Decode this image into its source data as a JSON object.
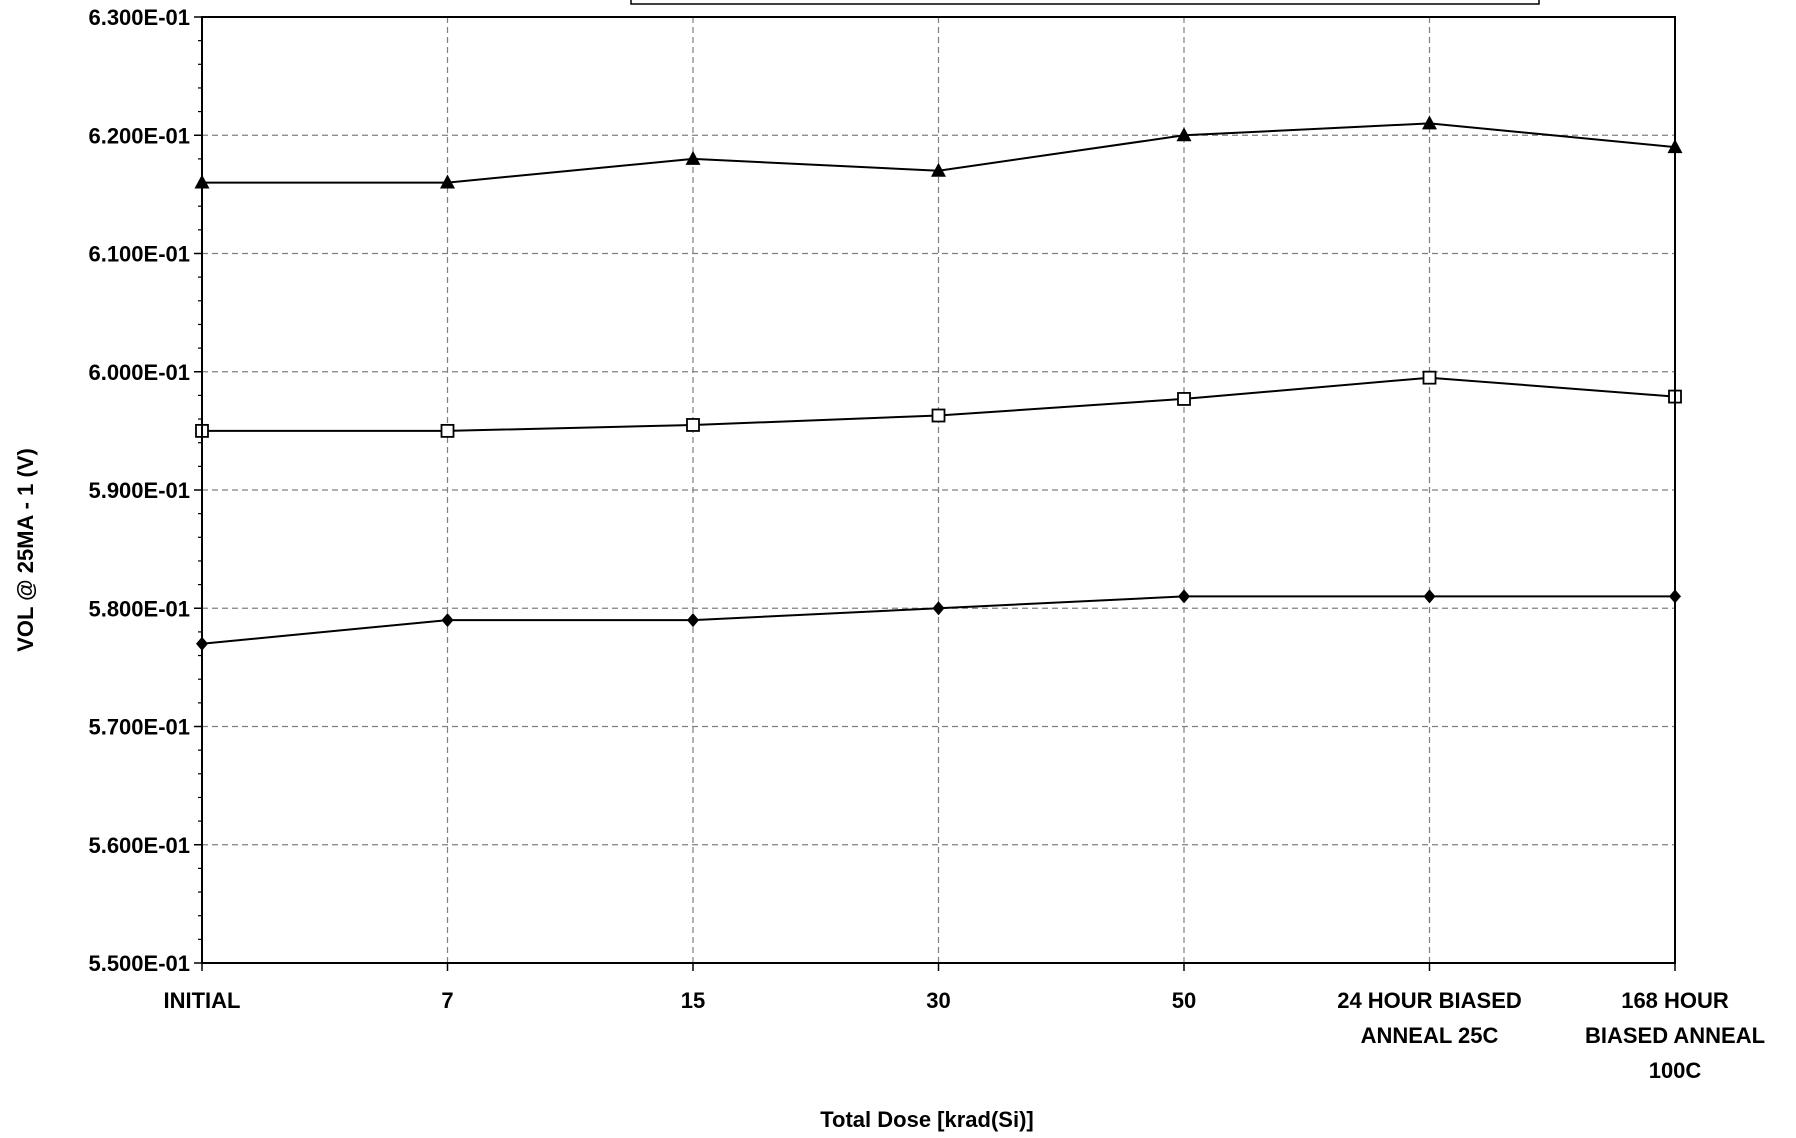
{
  "chart_data": {
    "type": "line",
    "title": "",
    "xlabel": "Total Dose [krad(Si)]",
    "ylabel": "VOL @ 25MA - 1  (V)",
    "categories": [
      [
        "INITIAL"
      ],
      [
        "7"
      ],
      [
        "15"
      ],
      [
        "30"
      ],
      [
        "50"
      ],
      [
        "24 HOUR BIASED",
        "ANNEAL 25C"
      ],
      [
        "168 HOUR",
        "BIASED ANNEAL",
        "100C"
      ]
    ],
    "ylim": [
      0.55,
      0.63
    ],
    "yticks": [
      0.55,
      0.56,
      0.57,
      0.58,
      0.59,
      0.6,
      0.61,
      0.62,
      0.63
    ],
    "ytick_labels": [
      "5.500E-01",
      "5.600E-01",
      "5.700E-01",
      "5.800E-01",
      "5.900E-01",
      "6.000E-01",
      "6.100E-01",
      "6.200E-01",
      "6.300E-01"
    ],
    "grid": true,
    "legend": "top (legend box partially cropped, entries not visible)",
    "series": [
      {
        "marker": "triangle",
        "values": [
          0.616,
          0.616,
          0.618,
          0.617,
          0.62,
          0.621,
          0.619
        ]
      },
      {
        "marker": "square-open",
        "values": [
          0.595,
          0.595,
          0.5955,
          0.5963,
          0.5977,
          0.5995,
          0.5979
        ]
      },
      {
        "marker": "diamond",
        "values": [
          0.577,
          0.579,
          0.579,
          0.58,
          0.581,
          0.581,
          0.581
        ]
      }
    ],
    "colors": {
      "line": "#000000",
      "grid": "#808080",
      "background": "#ffffff"
    }
  }
}
